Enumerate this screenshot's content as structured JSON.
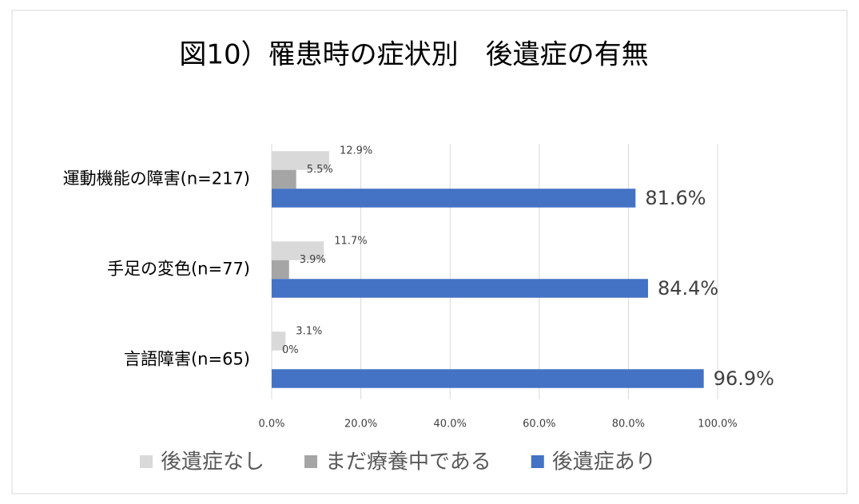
{
  "chart_data": {
    "type": "bar",
    "orientation": "horizontal",
    "title": "図10）罹患時の症状別　後遺症の有無",
    "categories": [
      "運動機能の障害(n=217)",
      "手足の変色(n=77)",
      "言語障害(n=65)"
    ],
    "series": [
      {
        "name": "後遺症なし",
        "color": "#d9d9d9",
        "values": [
          12.9,
          11.7,
          3.1
        ],
        "value_labels": [
          "12.9%",
          "11.7%",
          "3.1%"
        ]
      },
      {
        "name": "まだ療養中である",
        "color": "#a5a5a5",
        "values": [
          5.5,
          3.9,
          0
        ],
        "value_labels": [
          "5.5%",
          "3.9%",
          "0%"
        ]
      },
      {
        "name": "後遺症あり",
        "color": "#4472c4",
        "values": [
          81.6,
          84.4,
          96.9
        ],
        "value_labels": [
          "81.6%",
          "84.4%",
          "96.9%"
        ]
      }
    ],
    "xlim": [
      0,
      100
    ],
    "xticks": [
      {
        "value": 0,
        "label": "0.0%"
      },
      {
        "value": 20,
        "label": "20.0%"
      },
      {
        "value": 40,
        "label": "40.0%"
      },
      {
        "value": 60,
        "label": "60.0%"
      },
      {
        "value": 80,
        "label": "80.0%"
      },
      {
        "value": 100,
        "label": "100.0%"
      }
    ],
    "grid": true,
    "legend": "bottom"
  }
}
